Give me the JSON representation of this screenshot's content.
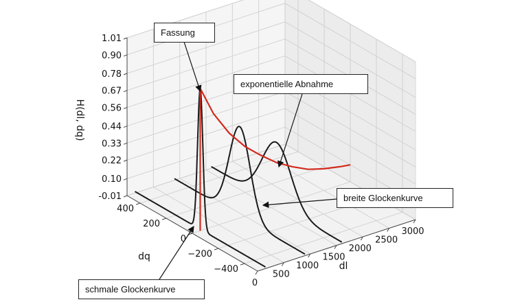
{
  "chart_data": {
    "type": "line",
    "projection": "3d",
    "zlabel": "H(dl, dq)",
    "xlabel": "dl",
    "ylabel": "dq",
    "z_ticks": [
      "1.01",
      "0.90",
      "0.78",
      "0.67",
      "0.56",
      "0.44",
      "0.33",
      "0.22",
      "0.10",
      "-0.01"
    ],
    "dl_ticks": [
      "0",
      "500",
      "1000",
      "1500",
      "2000",
      "2500",
      "3000"
    ],
    "dq_ticks": [
      "400",
      "200",
      "0",
      "−200",
      "−400"
    ],
    "zlim": [
      -0.01,
      1.01
    ],
    "xlim": [
      0,
      3000
    ],
    "ylim": [
      -500,
      500
    ],
    "grid": true,
    "series": [
      {
        "kind": "bell",
        "dl": 150,
        "peak": 0.91,
        "sigma": 20,
        "color": "#1a1a1a"
      },
      {
        "kind": "bell",
        "dl": 900,
        "peak": 0.58,
        "sigma": 80,
        "color": "#1a1a1a"
      },
      {
        "kind": "bell",
        "dl": 1600,
        "peak": 0.4,
        "sigma": 110,
        "color": "#1a1a1a"
      },
      {
        "kind": "exponential",
        "dl": [
          150,
          400,
          700,
          1000,
          1300,
          1600,
          1900,
          2200,
          2500,
          2800,
          3000
        ],
        "H": [
          0.91,
          0.72,
          0.56,
          0.44,
          0.35,
          0.27,
          0.21,
          0.16,
          0.13,
          0.11,
          0.1
        ],
        "color": "#d22b1e"
      }
    ],
    "annotations": [
      {
        "text": "Fassung"
      },
      {
        "text": "exponentielle Abnahme"
      },
      {
        "text": "breite Glockenkurve"
      },
      {
        "text": "schmale Glockenkurve"
      }
    ]
  }
}
